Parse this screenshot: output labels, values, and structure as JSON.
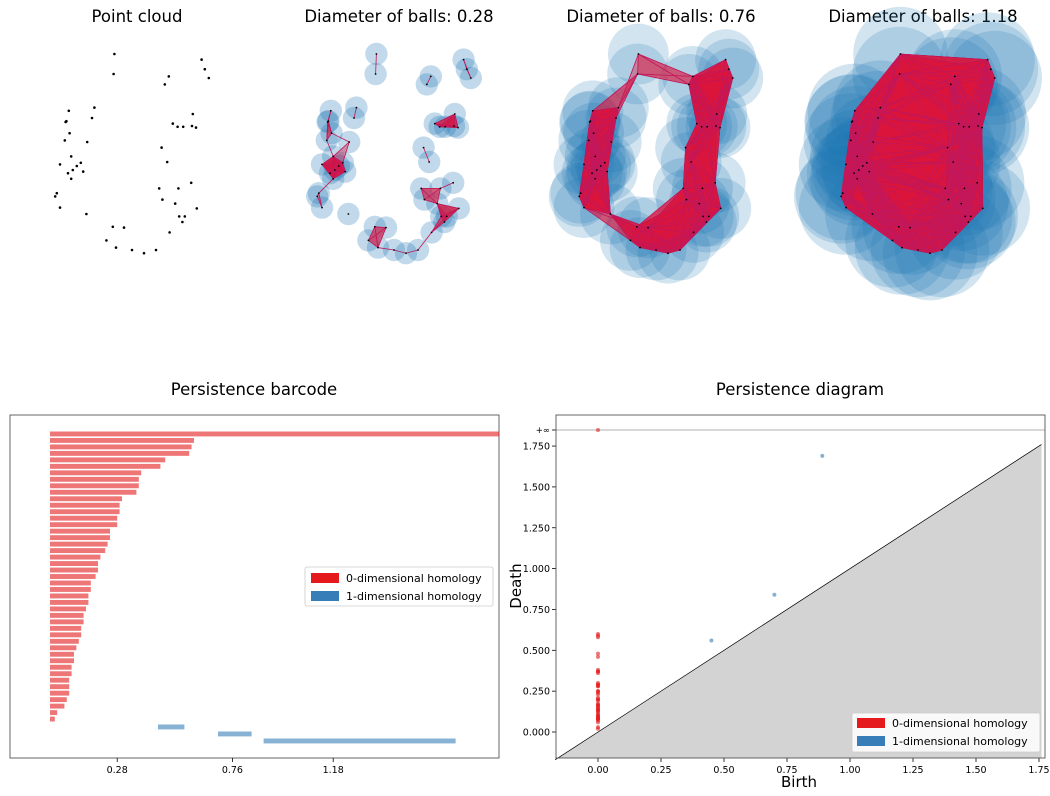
{
  "panels": [
    {
      "title": "Point cloud",
      "diameter": 0
    },
    {
      "title": "Diameter of balls: 0.28",
      "diameter": 0.28
    },
    {
      "title": "Diameter of balls: 0.76",
      "diameter": 0.76
    },
    {
      "title": "Diameter of balls: 1.18",
      "diameter": 1.18
    }
  ],
  "points": [
    [
      0.78,
      2.5
    ],
    [
      0.77,
      2.25
    ],
    [
      0.5,
      1.7
    ],
    [
      0.53,
      1.83
    ],
    [
      0.44,
      1.4
    ],
    [
      0.39,
      1.03
    ],
    [
      0.06,
      0.76
    ],
    [
      0.04,
      0.72
    ],
    [
      0.1,
      0.58
    ],
    [
      0.43,
      0.5
    ],
    [
      0.8,
      0.08
    ],
    [
      0.68,
      0.17
    ],
    [
      0.76,
      0.34
    ],
    [
      0.9,
      0.33
    ],
    [
      1.0,
      0.05
    ],
    [
      1.15,
      0.01
    ],
    [
      1.3,
      0.05
    ],
    [
      1.47,
      0.27
    ],
    [
      1.59,
      0.47
    ],
    [
      1.63,
      0.4
    ],
    [
      1.66,
      0.47
    ],
    [
      1.54,
      0.63
    ],
    [
      1.58,
      0.82
    ],
    [
      1.74,
      0.89
    ],
    [
      1.81,
      0.57
    ],
    [
      1.38,
      0.68
    ],
    [
      1.34,
      0.82
    ],
    [
      1.44,
      1.15
    ],
    [
      1.37,
      1.33
    ],
    [
      1.51,
      1.63
    ],
    [
      1.57,
      1.59
    ],
    [
      1.64,
      1.59
    ],
    [
      1.75,
      1.6
    ],
    [
      1.8,
      1.58
    ],
    [
      1.46,
      2.22
    ],
    [
      1.41,
      2.12
    ],
    [
      1.76,
      1.75
    ],
    [
      1.87,
      2.43
    ],
    [
      1.91,
      2.31
    ],
    [
      1.96,
      2.2
    ],
    [
      0.21,
      1.79
    ],
    [
      0.18,
      1.66
    ],
    [
      0.17,
      1.65
    ],
    [
      0.22,
      1.51
    ],
    [
      0.16,
      1.42
    ],
    [
      0.24,
      1.22
    ],
    [
      0.31,
      1.1
    ],
    [
      0.36,
      1.14
    ],
    [
      0.26,
      1.05
    ],
    [
      0.2,
      1.01
    ],
    [
      0.24,
      0.94
    ],
    [
      0.1,
      1.12
    ]
  ],
  "barcode": {
    "title": "Persistence barcode",
    "tick_labels": [
      "0.28",
      "0.76",
      "1.18"
    ],
    "tick_values": [
      0.28,
      0.76,
      1.18
    ],
    "legend": [
      "0-dimensional homology",
      "1-dimensional homology"
    ]
  },
  "diagram": {
    "title": "Persistence diagram",
    "xlabel": "Birth",
    "ylabel": "Death",
    "x_ticks": [
      "0.00",
      "0.25",
      "0.50",
      "0.75",
      "1.00",
      "1.25",
      "1.50",
      "1.75"
    ],
    "y_ticks": [
      "0.000",
      "0.250",
      "0.500",
      "0.750",
      "1.000",
      "1.250",
      "1.500",
      "1.750"
    ],
    "inf_label": "+∞",
    "legend": [
      "0-dimensional homology",
      "1-dimensional homology"
    ]
  },
  "chart_data": [
    {
      "type": "bar",
      "title": "Persistence barcode",
      "orientation": "horizontal",
      "x_ticks": [
        0.28,
        0.76,
        1.18
      ],
      "series": [
        {
          "name": "0-dimensional homology",
          "color": "#e41a1c",
          "intervals": [
            [
              0,
              "inf"
            ],
            [
              0,
              0.6
            ],
            [
              0,
              0.59
            ],
            [
              0,
              0.58
            ],
            [
              0,
              0.48
            ],
            [
              0,
              0.46
            ],
            [
              0,
              0.38
            ],
            [
              0,
              0.37
            ],
            [
              0,
              0.37
            ],
            [
              0,
              0.36
            ],
            [
              0,
              0.3
            ],
            [
              0,
              0.29
            ],
            [
              0,
              0.29
            ],
            [
              0,
              0.28
            ],
            [
              0,
              0.28
            ],
            [
              0,
              0.25
            ],
            [
              0,
              0.25
            ],
            [
              0,
              0.24
            ],
            [
              0,
              0.23
            ],
            [
              0,
              0.21
            ],
            [
              0,
              0.2
            ],
            [
              0,
              0.2
            ],
            [
              0,
              0.19
            ],
            [
              0,
              0.17
            ],
            [
              0,
              0.17
            ],
            [
              0,
              0.16
            ],
            [
              0,
              0.16
            ],
            [
              0,
              0.15
            ],
            [
              0,
              0.14
            ],
            [
              0,
              0.14
            ],
            [
              0,
              0.13
            ],
            [
              0,
              0.13
            ],
            [
              0,
              0.12
            ],
            [
              0,
              0.11
            ],
            [
              0,
              0.1
            ],
            [
              0,
              0.1
            ],
            [
              0,
              0.09
            ],
            [
              0,
              0.09
            ],
            [
              0,
              0.08
            ],
            [
              0,
              0.08
            ],
            [
              0,
              0.08
            ],
            [
              0,
              0.07
            ],
            [
              0,
              0.06
            ],
            [
              0,
              0.03
            ],
            [
              0,
              0.02
            ]
          ]
        },
        {
          "name": "1-dimensional homology",
          "color": "#377eb8",
          "intervals": [
            [
              0.45,
              0.56
            ],
            [
              0.7,
              0.84
            ],
            [
              0.89,
              1.69
            ]
          ]
        }
      ]
    },
    {
      "type": "scatter",
      "title": "Persistence diagram",
      "xlabel": "Birth",
      "ylabel": "Death",
      "xlim": [
        -0.17,
        1.76
      ],
      "ylim": [
        -0.17,
        1.85
      ],
      "series": [
        {
          "name": "0-dimensional homology",
          "color": "#e41a1c",
          "points": [
            [
              0,
              "inf"
            ],
            [
              0,
              0.6
            ],
            [
              0,
              0.59
            ],
            [
              0,
              0.58
            ],
            [
              0,
              0.48
            ],
            [
              0,
              0.46
            ],
            [
              0,
              0.38
            ],
            [
              0,
              0.37
            ],
            [
              0,
              0.37
            ],
            [
              0,
              0.36
            ],
            [
              0,
              0.3
            ],
            [
              0,
              0.29
            ],
            [
              0,
              0.29
            ],
            [
              0,
              0.28
            ],
            [
              0,
              0.28
            ],
            [
              0,
              0.25
            ],
            [
              0,
              0.25
            ],
            [
              0,
              0.24
            ],
            [
              0,
              0.23
            ],
            [
              0,
              0.21
            ],
            [
              0,
              0.2
            ],
            [
              0,
              0.2
            ],
            [
              0,
              0.19
            ],
            [
              0,
              0.17
            ],
            [
              0,
              0.17
            ],
            [
              0,
              0.16
            ],
            [
              0,
              0.16
            ],
            [
              0,
              0.15
            ],
            [
              0,
              0.14
            ],
            [
              0,
              0.14
            ],
            [
              0,
              0.13
            ],
            [
              0,
              0.13
            ],
            [
              0,
              0.12
            ],
            [
              0,
              0.11
            ],
            [
              0,
              0.1
            ],
            [
              0,
              0.1
            ],
            [
              0,
              0.09
            ],
            [
              0,
              0.09
            ],
            [
              0,
              0.08
            ],
            [
              0,
              0.08
            ],
            [
              0,
              0.08
            ],
            [
              0,
              0.07
            ],
            [
              0,
              0.06
            ],
            [
              0,
              0.03
            ],
            [
              0,
              0.02
            ]
          ]
        },
        {
          "name": "1-dimensional homology",
          "color": "#377eb8",
          "points": [
            [
              0.45,
              0.56
            ],
            [
              0.7,
              0.84
            ],
            [
              0.89,
              1.69
            ]
          ]
        }
      ]
    }
  ]
}
